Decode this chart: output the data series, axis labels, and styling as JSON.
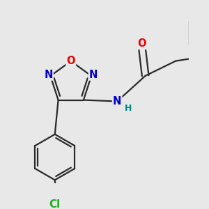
{
  "bg_color": "#e8e8e8",
  "bond_color": "#2a2a2a",
  "bond_width": 1.6,
  "dbo": 0.05,
  "atom_colors": {
    "N": "#0000cc",
    "O": "#ee0000",
    "Cl": "#22aa22",
    "H": "#008888",
    "C": "#2a2a2a"
  },
  "fs": 10.5
}
